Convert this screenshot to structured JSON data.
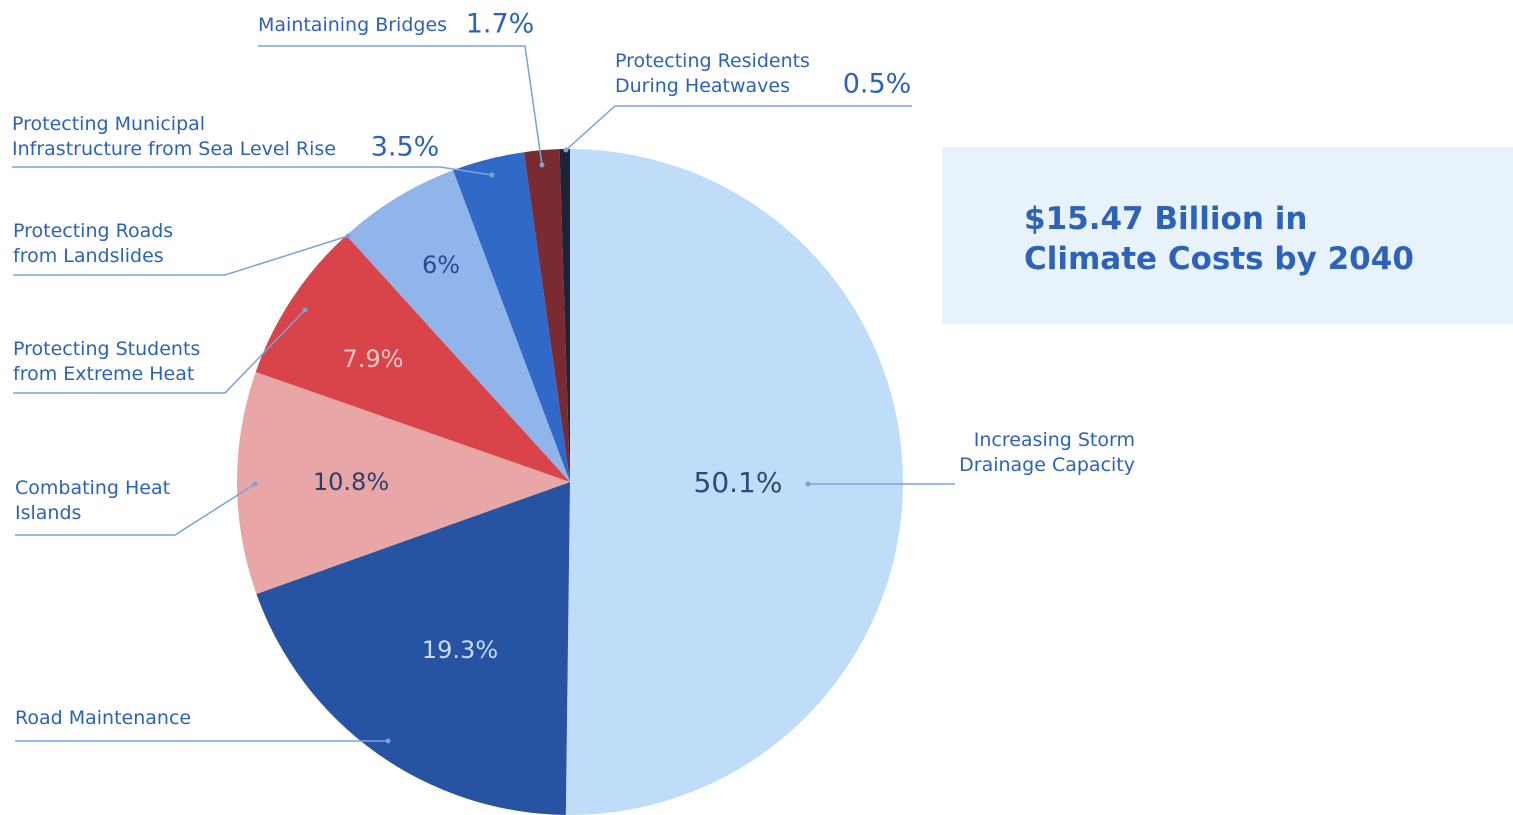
{
  "chart_data": {
    "type": "pie",
    "title": "$15.47 Billion in\nClimate Costs by 2040",
    "categories": [
      "Increasing Storm\nDrainage Capacity",
      "Road Maintenance",
      "Combating Heat\nIslands",
      "Protecting Students\nfrom Extreme Heat",
      "Protecting Roads\nfrom Landslides",
      "Protecting Municipal\nInfrastructure from Sea Level Rise",
      "Maintaining Bridges",
      "Protecting Residents\nDuring Heatwaves"
    ],
    "values": [
      50.1,
      19.3,
      10.8,
      7.9,
      6,
      3.5,
      1.7,
      0.5
    ],
    "value_labels": [
      "50.1%",
      "19.3%",
      "10.8%",
      "7.9%",
      "6%",
      "3.5%",
      "1.7%",
      "0.5%"
    ],
    "colors": [
      "#bfdcf8",
      "#2753a3",
      "#e8a6a6",
      "#d9434a",
      "#8fb5ea",
      "#3169c9",
      "#7a2a31",
      "#1b2436"
    ]
  }
}
